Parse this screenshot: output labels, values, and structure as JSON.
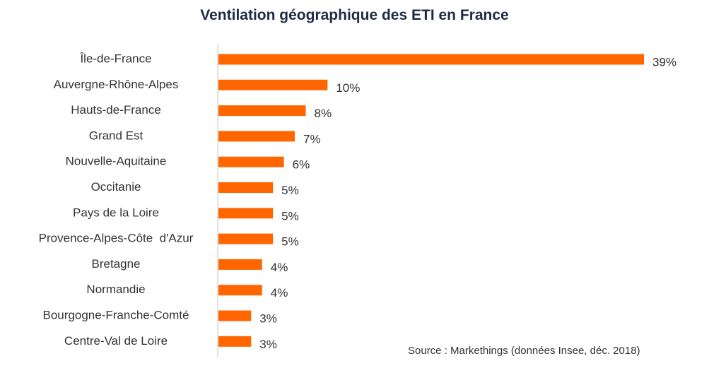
{
  "chart_data": {
    "type": "bar",
    "orientation": "horizontal",
    "title": "Ventilation géographique  des ETI en France",
    "categories": [
      "Île-de-France",
      "Auvergne-Rhône-Alpes",
      "Hauts-de-France",
      "Grand Est",
      "Nouvelle-Aquitaine",
      "Occitanie",
      "Pays de la Loire",
      "Provence-Alpes-Côte  d'Azur",
      "Bretagne",
      "Normandie",
      "Bourgogne-Franche-Comté",
      "Centre-Val de Loire"
    ],
    "values": [
      39,
      10,
      8,
      7,
      6,
      5,
      5,
      5,
      4,
      4,
      3,
      3
    ],
    "value_labels": [
      "39%",
      "10%",
      "8%",
      "7%",
      "6%",
      "5%",
      "5%",
      "5%",
      "4%",
      "4%",
      "3%",
      "3%"
    ],
    "xlabel": "",
    "ylabel": "",
    "xlim": [
      0,
      39
    ],
    "grid": false,
    "legend": "none",
    "bar_color": "#ff6600",
    "axis_color": "#d9d9d9"
  },
  "source": "Source : Markethings (données Insee, déc. 2018)"
}
